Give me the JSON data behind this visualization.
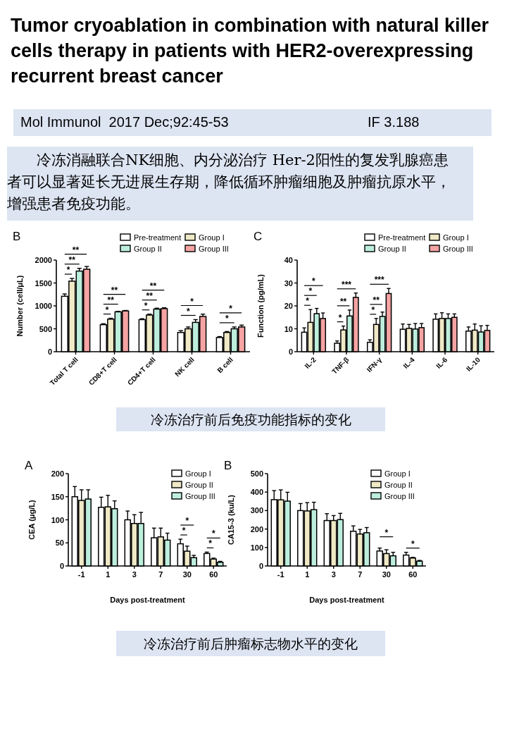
{
  "chart_data": [
    {
      "type": "other",
      "title": "Tumor cryoablation in combination with natural killer cells therapy in patients with HER2-overexpressing recurrent breast cancer",
      "annotations": [
        "Mol Immunol  2017 Dec;92:45-53",
        "IF 3.188",
        "冷冻消融联合NK细胞、内分泌治疗 Her-2阳性的复发乳腺癌患者可以显著延长无进展生存期，降低循环肿瘤细胞及肿瘤抗原水平，增强患者免疫功能。"
      ]
    },
    {
      "type": "bar",
      "title": "B",
      "ylabel": "Number (cell/μL)",
      "categories": [
        "Total T cell",
        "CD8+T cell",
        "CD4+T cell",
        "NK cell",
        "B cell"
      ],
      "ylim": [
        0,
        2000
      ],
      "yticks": [
        0,
        500,
        1000,
        1500,
        2000
      ],
      "legend": "top right",
      "series": [
        {
          "name": "Pre-treatment",
          "color": "#ffffff",
          "values": [
            1210,
            590,
            700,
            420,
            310
          ],
          "errors": [
            50,
            20,
            20,
            40,
            20
          ]
        },
        {
          "name": "Group I",
          "color": "#efe9c6",
          "values": [
            1540,
            710,
            800,
            500,
            420
          ],
          "errors": [
            60,
            20,
            20,
            40,
            20
          ]
        },
        {
          "name": "Group II",
          "color": "#bdeedd",
          "values": [
            1760,
            870,
            930,
            640,
            500
          ],
          "errors": [
            60,
            10,
            20,
            60,
            40
          ]
        },
        {
          "name": "Group III",
          "color": "#f5a3a3",
          "values": [
            1800,
            890,
            940,
            770,
            540
          ],
          "errors": [
            60,
            10,
            20,
            50,
            40
          ]
        }
      ],
      "annotations": [
        "*",
        "**",
        "**",
        "*",
        "**",
        "**",
        "*",
        "**",
        "**",
        "*",
        "*",
        "*",
        "*"
      ]
    },
    {
      "type": "bar",
      "title": "C",
      "ylabel": "Function (pg/mL)",
      "categories": [
        "IL-2",
        "TNF-β",
        "IFN-γ",
        "IL-4",
        "IL-6",
        "IL-10"
      ],
      "ylim": [
        0,
        40
      ],
      "yticks": [
        0,
        10,
        20,
        30,
        40
      ],
      "legend": "top right",
      "series": [
        {
          "name": "Pre-treatment",
          "color": "#ffffff",
          "values": [
            8.5,
            3.7,
            4.1,
            9.8,
            14.2,
            9.0
          ],
          "errors": [
            1.9,
            1.0,
            1.1,
            2.3,
            2.3,
            1.8
          ]
        },
        {
          "name": "Group I",
          "color": "#efe9c6",
          "values": [
            12.8,
            9.5,
            11.9,
            10.2,
            14.5,
            9.4
          ],
          "errors": [
            5.6,
            1.7,
            2.6,
            1.7,
            2.5,
            2.7
          ]
        },
        {
          "name": "Group II",
          "color": "#bdeedd",
          "values": [
            16.6,
            15.6,
            15.4,
            9.9,
            14.5,
            8.6
          ],
          "errors": [
            2.3,
            2.6,
            1.9,
            2.4,
            2.0,
            2.7
          ]
        },
        {
          "name": "Group III",
          "color": "#f5a3a3",
          "values": [
            14.5,
            23.7,
            25.4,
            10.5,
            15.0,
            9.3
          ],
          "errors": [
            2.4,
            1.9,
            2.2,
            1.8,
            1.5,
            2.2
          ]
        }
      ],
      "annotations": [
        "*",
        "*",
        "*",
        "*",
        "**",
        "***",
        "*",
        "**",
        "***"
      ]
    },
    {
      "type": "other",
      "title": "冷冻治疗前后免疫功能指标的变化"
    },
    {
      "type": "bar",
      "title": "A",
      "ylabel": "CEA (μg/L)",
      "xlabel": "Days post-treatment",
      "categories": [
        "-1",
        "1",
        "3",
        "7",
        "30",
        "60"
      ],
      "ylim": [
        0,
        200
      ],
      "yticks": [
        0,
        50,
        100,
        150,
        200
      ],
      "legend": "top right",
      "series": [
        {
          "name": "Group I",
          "color": "#ffffff",
          "values": [
            150,
            127,
            100,
            61,
            48,
            27
          ],
          "errors": [
            22,
            22,
            19,
            21,
            10,
            3
          ]
        },
        {
          "name": "Group II",
          "color": "#efe9c6",
          "values": [
            142,
            128,
            92,
            63,
            32,
            15
          ],
          "errors": [
            23,
            25,
            19,
            19,
            11,
            2
          ]
        },
        {
          "name": "Group III",
          "color": "#bdeedd",
          "values": [
            145,
            124,
            92,
            56,
            18,
            8
          ],
          "errors": [
            20,
            17,
            24,
            15,
            5,
            2
          ]
        }
      ],
      "annotations": [
        "*",
        "*",
        "*",
        "*"
      ]
    },
    {
      "type": "bar",
      "title": "B",
      "ylabel": "CA15-3 (ku/L)",
      "xlabel": "Days post-treatment",
      "categories": [
        "-1",
        "1",
        "3",
        "7",
        "30",
        "60"
      ],
      "ylim": [
        0,
        500
      ],
      "yticks": [
        0,
        100,
        200,
        300,
        400,
        500
      ],
      "legend": "top right",
      "series": [
        {
          "name": "Group I",
          "color": "#ffffff",
          "values": [
            359,
            300,
            246,
            188,
            81,
            59
          ],
          "errors": [
            49,
            38,
            37,
            29,
            16,
            15
          ]
        },
        {
          "name": "Group II",
          "color": "#efe9c6",
          "values": [
            358,
            298,
            246,
            173,
            67,
            43
          ],
          "errors": [
            54,
            45,
            27,
            25,
            21,
            4
          ]
        },
        {
          "name": "Group III",
          "color": "#bdeedd",
          "values": [
            351,
            305,
            251,
            180,
            55,
            26
          ],
          "errors": [
            48,
            40,
            34,
            28,
            19,
            4
          ]
        }
      ],
      "annotations": [
        "*",
        "*"
      ]
    },
    {
      "type": "other",
      "title": "冷冻治疗前后肿瘤标志物水平的变化"
    }
  ]
}
